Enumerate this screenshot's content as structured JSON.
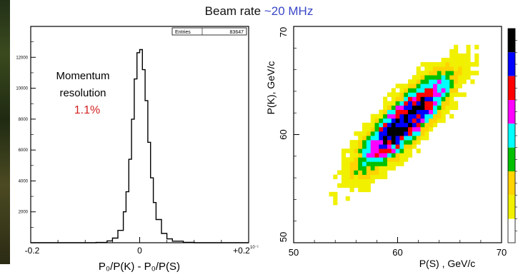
{
  "title": {
    "prefix": "Beam rate",
    "value": "~20 MHz"
  },
  "chart_data": [
    {
      "type": "line",
      "stats_box": {
        "name": "Entries",
        "value": "83647"
      },
      "annotation": {
        "line1": "Momentum",
        "line2": "resolution",
        "value": "1.1%"
      },
      "xlabel": "P₀/P(K)   - P₀/P(S)",
      "x_ticks": [
        "-0.2",
        "0",
        "+0.2"
      ],
      "x_exponent": "10⁻¹",
      "y_ticks": [
        "2000",
        "4000",
        "6000",
        "8000",
        "10000",
        "12000"
      ],
      "xlim": [
        -0.2,
        0.2
      ],
      "ylim": [
        0,
        14000
      ],
      "x": [
        -0.2,
        -0.1,
        -0.08,
        -0.06,
        -0.05,
        -0.04,
        -0.03,
        -0.025,
        -0.02,
        -0.015,
        -0.01,
        -0.005,
        0.0,
        0.005,
        0.01,
        0.015,
        0.02,
        0.025,
        0.03,
        0.04,
        0.05,
        0.06,
        0.08,
        0.1,
        0.2
      ],
      "values": [
        0,
        0,
        20,
        120,
        300,
        800,
        2000,
        3300,
        5400,
        8000,
        10600,
        12300,
        12500,
        11200,
        9200,
        6500,
        4200,
        2600,
        1500,
        600,
        250,
        100,
        30,
        0,
        0
      ],
      "grid": false
    },
    {
      "type": "heatmap",
      "xlabel": "P(S) , GeV/c",
      "ylabel": "P(K), GeV/c",
      "x_ticks": [
        "50",
        "60",
        "70"
      ],
      "y_ticks": [
        "50",
        "60",
        "70"
      ],
      "xlim": [
        50,
        70
      ],
      "ylim": [
        50,
        70
      ],
      "correlation": "P(K) ≈ P(S)",
      "x_range_filled": [
        54,
        67
      ],
      "y_range_filled": [
        55,
        67
      ],
      "palette": [
        "#ffffff",
        "#f0f000",
        "#ffd400",
        "#00c000",
        "#00ffff",
        "#ff00ff",
        "#ff0000",
        "#0000ff",
        "#000000"
      ],
      "grid": false
    }
  ]
}
